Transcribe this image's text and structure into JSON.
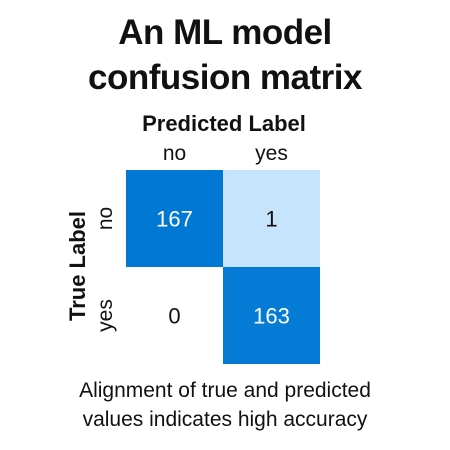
{
  "title": [
    "An ML model",
    "confusion matrix"
  ],
  "caption": [
    "Alignment of true and predicted",
    "values indicates high accuracy"
  ],
  "chart_data": {
    "type": "heatmap",
    "xlabel": "Predicted Label",
    "ylabel": "True Label",
    "x_categories": [
      "no",
      "yes"
    ],
    "y_categories": [
      "no",
      "yes"
    ],
    "values": [
      [
        167,
        1
      ],
      [
        0,
        163
      ]
    ],
    "colors": {
      "high": "#0078d4",
      "low": "#ffffff",
      "mid_light": "#c6e4fb"
    },
    "grid": false,
    "legend": "none"
  }
}
